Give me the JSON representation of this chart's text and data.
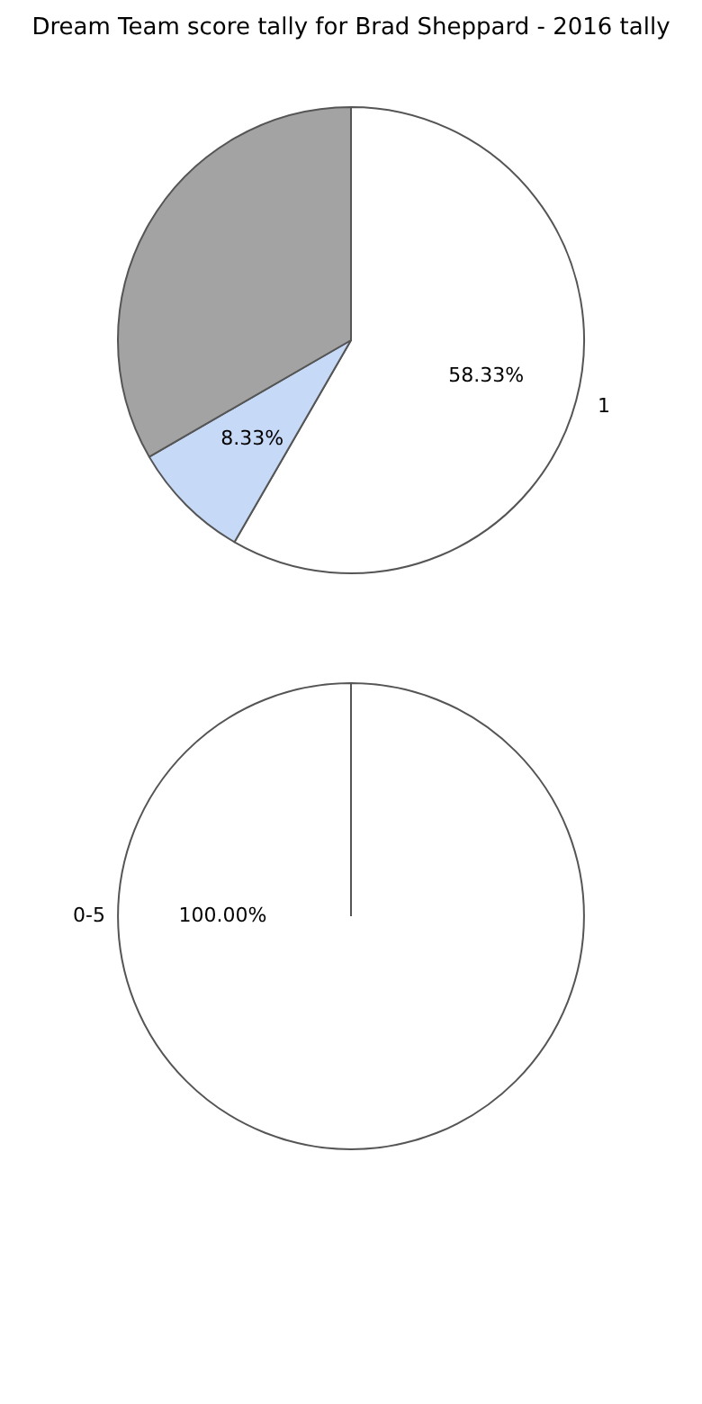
{
  "chart_data": [
    {
      "type": "pie",
      "title": "Dream Team score tally for Brad Sheppard - 2016 tally",
      "categories": [
        "1",
        null,
        null
      ],
      "values": [
        58.33,
        8.33,
        33.34
      ],
      "colors": [
        "#ffffff",
        "#c6d9f7",
        "#a3a3a4"
      ],
      "value_labels": [
        "58.33%",
        "8.33%",
        null
      ]
    },
    {
      "type": "pie",
      "categories": [
        "0-5"
      ],
      "values": [
        100
      ],
      "colors": [
        "#ffffff"
      ],
      "value_labels": [
        "100.00%"
      ]
    }
  ]
}
